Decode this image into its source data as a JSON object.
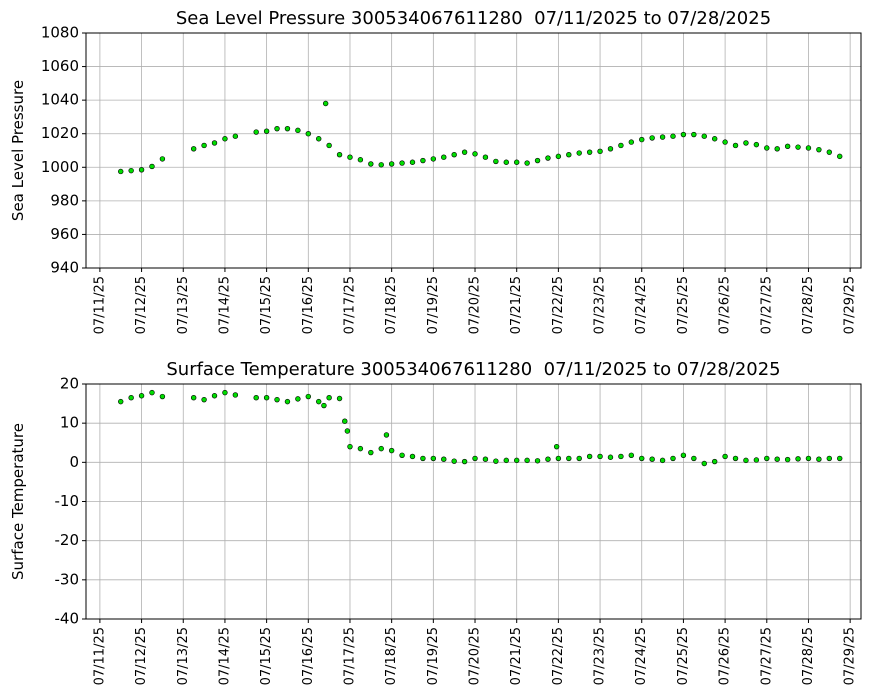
{
  "chart_data": [
    {
      "type": "scatter",
      "title": "Sea Level Pressure 300534067611280  07/11/2025 to 07/28/2025",
      "ylabel": "Sea Level Pressure",
      "color": "#00dd00",
      "edgecolor": "#000000",
      "grid": true,
      "xlim": [
        "2025-07-10T16:00",
        "2025-07-29T06:15"
      ],
      "ylim": [
        940,
        1080
      ],
      "yticks": [
        940,
        960,
        980,
        1000,
        1020,
        1040,
        1060,
        1080
      ],
      "xticks": [
        {
          "value": "2025-07-11T00:00",
          "label": "07/11/25"
        },
        {
          "value": "2025-07-12T00:00",
          "label": "07/12/25"
        },
        {
          "value": "2025-07-13T00:00",
          "label": "07/13/25"
        },
        {
          "value": "2025-07-14T00:00",
          "label": "07/14/25"
        },
        {
          "value": "2025-07-15T00:00",
          "label": "07/15/25"
        },
        {
          "value": "2025-07-16T00:00",
          "label": "07/16/25"
        },
        {
          "value": "2025-07-17T00:00",
          "label": "07/17/25"
        },
        {
          "value": "2025-07-18T00:00",
          "label": "07/18/25"
        },
        {
          "value": "2025-07-19T00:00",
          "label": "07/19/25"
        },
        {
          "value": "2025-07-20T00:00",
          "label": "07/20/25"
        },
        {
          "value": "2025-07-21T00:00",
          "label": "07/21/25"
        },
        {
          "value": "2025-07-22T00:00",
          "label": "07/22/25"
        },
        {
          "value": "2025-07-23T00:00",
          "label": "07/23/25"
        },
        {
          "value": "2025-07-24T00:00",
          "label": "07/24/25"
        },
        {
          "value": "2025-07-25T00:00",
          "label": "07/25/25"
        },
        {
          "value": "2025-07-26T00:00",
          "label": "07/26/25"
        },
        {
          "value": "2025-07-27T00:00",
          "label": "07/27/25"
        },
        {
          "value": "2025-07-28T00:00",
          "label": "07/28/25"
        },
        {
          "value": "2025-07-29T00:00",
          "label": "07/29/25"
        }
      ],
      "x": [
        "2025-07-11T12:00",
        "2025-07-11T18:00",
        "2025-07-12T00:00",
        "2025-07-12T06:00",
        "2025-07-12T12:00",
        "2025-07-13T06:00",
        "2025-07-13T12:00",
        "2025-07-13T18:00",
        "2025-07-14T00:00",
        "2025-07-14T06:00",
        "2025-07-14T18:00",
        "2025-07-15T00:00",
        "2025-07-15T06:00",
        "2025-07-15T12:00",
        "2025-07-15T18:00",
        "2025-07-16T00:00",
        "2025-07-16T06:00",
        "2025-07-16T10:00",
        "2025-07-16T12:00",
        "2025-07-16T18:00",
        "2025-07-17T00:00",
        "2025-07-17T06:00",
        "2025-07-17T12:00",
        "2025-07-17T18:00",
        "2025-07-18T00:00",
        "2025-07-18T06:00",
        "2025-07-18T12:00",
        "2025-07-18T18:00",
        "2025-07-19T00:00",
        "2025-07-19T06:00",
        "2025-07-19T12:00",
        "2025-07-19T18:00",
        "2025-07-20T00:00",
        "2025-07-20T06:00",
        "2025-07-20T12:00",
        "2025-07-20T18:00",
        "2025-07-21T00:00",
        "2025-07-21T06:00",
        "2025-07-21T12:00",
        "2025-07-21T18:00",
        "2025-07-22T00:00",
        "2025-07-22T06:00",
        "2025-07-22T12:00",
        "2025-07-22T18:00",
        "2025-07-23T00:00",
        "2025-07-23T06:00",
        "2025-07-23T12:00",
        "2025-07-23T18:00",
        "2025-07-24T00:00",
        "2025-07-24T06:00",
        "2025-07-24T12:00",
        "2025-07-24T18:00",
        "2025-07-25T00:00",
        "2025-07-25T06:00",
        "2025-07-25T12:00",
        "2025-07-25T18:00",
        "2025-07-26T00:00",
        "2025-07-26T06:00",
        "2025-07-26T12:00",
        "2025-07-26T18:00",
        "2025-07-27T00:00",
        "2025-07-27T06:00",
        "2025-07-27T12:00",
        "2025-07-27T18:00",
        "2025-07-28T00:00",
        "2025-07-28T06:00",
        "2025-07-28T12:00",
        "2025-07-28T18:00"
      ],
      "values": [
        997.5,
        998,
        998.5,
        1000.5,
        1005,
        1011,
        1013,
        1014.5,
        1017,
        1018.5,
        1021,
        1021.5,
        1023,
        1023,
        1022,
        1020,
        1017,
        1038,
        1013,
        1007.5,
        1006,
        1004.5,
        1002,
        1001.5,
        1002,
        1002.5,
        1003,
        1004,
        1005,
        1006,
        1007.5,
        1009,
        1008,
        1006,
        1003.5,
        1003,
        1003,
        1002.5,
        1004,
        1005.5,
        1006.5,
        1007.5,
        1008.5,
        1009,
        1009.5,
        1011,
        1013,
        1015,
        1016.5,
        1017.5,
        1018,
        1018.5,
        1019.5,
        1019.5,
        1018.5,
        1017,
        1015,
        1013,
        1014.5,
        1013.5,
        1011.5,
        1011,
        1012.5,
        1012,
        1011.5,
        1010.5,
        1009,
        1006.5
      ]
    },
    {
      "type": "scatter",
      "title": "Surface Temperature 300534067611280  07/11/2025 to 07/28/2025",
      "ylabel": "Surface Temperature",
      "color": "#00dd00",
      "edgecolor": "#000000",
      "grid": true,
      "xlim": [
        "2025-07-10T16:00",
        "2025-07-29T06:15"
      ],
      "ylim": [
        -40,
        20
      ],
      "yticks": [
        -40,
        -30,
        -20,
        -10,
        0,
        10,
        20
      ],
      "xticks": [
        {
          "value": "2025-07-11T00:00",
          "label": "07/11/25"
        },
        {
          "value": "2025-07-12T00:00",
          "label": "07/12/25"
        },
        {
          "value": "2025-07-13T00:00",
          "label": "07/13/25"
        },
        {
          "value": "2025-07-14T00:00",
          "label": "07/14/25"
        },
        {
          "value": "2025-07-15T00:00",
          "label": "07/15/25"
        },
        {
          "value": "2025-07-16T00:00",
          "label": "07/16/25"
        },
        {
          "value": "2025-07-17T00:00",
          "label": "07/17/25"
        },
        {
          "value": "2025-07-18T00:00",
          "label": "07/18/25"
        },
        {
          "value": "2025-07-19T00:00",
          "label": "07/19/25"
        },
        {
          "value": "2025-07-20T00:00",
          "label": "07/20/25"
        },
        {
          "value": "2025-07-21T00:00",
          "label": "07/21/25"
        },
        {
          "value": "2025-07-22T00:00",
          "label": "07/22/25"
        },
        {
          "value": "2025-07-23T00:00",
          "label": "07/23/25"
        },
        {
          "value": "2025-07-24T00:00",
          "label": "07/24/25"
        },
        {
          "value": "2025-07-25T00:00",
          "label": "07/25/25"
        },
        {
          "value": "2025-07-26T00:00",
          "label": "07/26/25"
        },
        {
          "value": "2025-07-27T00:00",
          "label": "07/27/25"
        },
        {
          "value": "2025-07-28T00:00",
          "label": "07/28/25"
        },
        {
          "value": "2025-07-29T00:00",
          "label": "07/29/25"
        }
      ],
      "x": [
        "2025-07-11T12:00",
        "2025-07-11T18:00",
        "2025-07-12T00:00",
        "2025-07-12T06:00",
        "2025-07-12T12:00",
        "2025-07-13T06:00",
        "2025-07-13T12:00",
        "2025-07-13T18:00",
        "2025-07-14T00:00",
        "2025-07-14T06:00",
        "2025-07-14T18:00",
        "2025-07-15T00:00",
        "2025-07-15T06:00",
        "2025-07-15T12:00",
        "2025-07-15T18:00",
        "2025-07-16T00:00",
        "2025-07-16T06:00",
        "2025-07-16T09:00",
        "2025-07-16T12:00",
        "2025-07-16T18:00",
        "2025-07-16T21:00",
        "2025-07-16T22:30",
        "2025-07-17T00:00",
        "2025-07-17T06:00",
        "2025-07-17T12:00",
        "2025-07-17T18:00",
        "2025-07-17T21:00",
        "2025-07-18T00:00",
        "2025-07-18T06:00",
        "2025-07-18T12:00",
        "2025-07-18T18:00",
        "2025-07-19T00:00",
        "2025-07-19T06:00",
        "2025-07-19T12:00",
        "2025-07-19T18:00",
        "2025-07-20T00:00",
        "2025-07-20T06:00",
        "2025-07-20T12:00",
        "2025-07-20T18:00",
        "2025-07-21T00:00",
        "2025-07-21T06:00",
        "2025-07-21T12:00",
        "2025-07-21T18:00",
        "2025-07-21T23:00",
        "2025-07-22T00:00",
        "2025-07-22T06:00",
        "2025-07-22T12:00",
        "2025-07-22T18:00",
        "2025-07-23T00:00",
        "2025-07-23T06:00",
        "2025-07-23T12:00",
        "2025-07-23T18:00",
        "2025-07-24T00:00",
        "2025-07-24T06:00",
        "2025-07-24T12:00",
        "2025-07-24T18:00",
        "2025-07-25T00:00",
        "2025-07-25T06:00",
        "2025-07-25T12:00",
        "2025-07-25T18:00",
        "2025-07-26T00:00",
        "2025-07-26T06:00",
        "2025-07-26T12:00",
        "2025-07-26T18:00",
        "2025-07-27T00:00",
        "2025-07-27T06:00",
        "2025-07-27T12:00",
        "2025-07-27T18:00",
        "2025-07-28T00:00",
        "2025-07-28T06:00",
        "2025-07-28T12:00",
        "2025-07-28T18:00"
      ],
      "values": [
        15.5,
        16.5,
        17,
        17.8,
        16.8,
        16.5,
        16,
        17,
        17.8,
        17.2,
        16.5,
        16.5,
        16,
        15.5,
        16.2,
        16.8,
        15.5,
        14.5,
        16.5,
        16.3,
        10.5,
        8,
        4,
        3.5,
        2.5,
        3.5,
        7,
        3,
        1.8,
        1.5,
        1,
        1,
        0.8,
        0.3,
        0.2,
        1,
        0.8,
        0.3,
        0.5,
        0.5,
        0.5,
        0.4,
        0.8,
        4,
        1,
        1,
        1,
        1.5,
        1.5,
        1.3,
        1.5,
        1.8,
        1,
        0.8,
        0.5,
        1,
        1.8,
        1,
        -0.3,
        0.2,
        1.5,
        1,
        0.5,
        0.6,
        1,
        0.8,
        0.7,
        0.9,
        1,
        0.8,
        1,
        1
      ]
    }
  ]
}
